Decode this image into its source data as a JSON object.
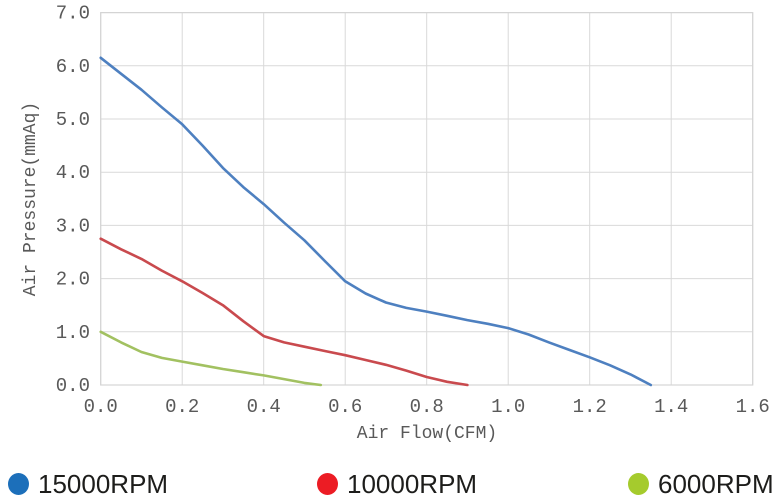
{
  "chart_data": {
    "type": "line",
    "xlabel": "Air Flow(CFM)",
    "ylabel": "Air Pressure(mmAq)",
    "xlim": [
      0,
      1.6
    ],
    "ylim": [
      0,
      7.0
    ],
    "xticks": [
      "0.0",
      "0.2",
      "0.4",
      "0.6",
      "0.8",
      "1.0",
      "1.2",
      "1.4",
      "1.6"
    ],
    "yticks": [
      "0.0",
      "1.0",
      "2.0",
      "3.0",
      "4.0",
      "5.0",
      "6.0",
      "7.0"
    ],
    "grid": true,
    "legend_position": "bottom",
    "series": [
      {
        "name": "15000RPM",
        "line_color": "#4e80c0",
        "legend_color": "#1c6fba",
        "x": [
          0,
          0.05,
          0.1,
          0.15,
          0.2,
          0.25,
          0.3,
          0.35,
          0.4,
          0.45,
          0.5,
          0.55,
          0.6,
          0.65,
          0.7,
          0.75,
          0.8,
          0.85,
          0.9,
          0.95,
          1.0,
          1.05,
          1.1,
          1.15,
          1.2,
          1.25,
          1.3,
          1.35
        ],
        "y": [
          6.15,
          5.85,
          5.55,
          5.22,
          4.9,
          4.5,
          4.08,
          3.72,
          3.4,
          3.05,
          2.72,
          2.33,
          1.95,
          1.72,
          1.55,
          1.45,
          1.38,
          1.3,
          1.22,
          1.15,
          1.07,
          0.95,
          0.8,
          0.66,
          0.52,
          0.37,
          0.2,
          0.0
        ]
      },
      {
        "name": "10000RPM",
        "line_color": "#c94a4e",
        "legend_color": "#ec1c24",
        "x": [
          0,
          0.05,
          0.1,
          0.15,
          0.2,
          0.25,
          0.3,
          0.35,
          0.4,
          0.45,
          0.5,
          0.55,
          0.6,
          0.65,
          0.7,
          0.75,
          0.8,
          0.85,
          0.9
        ],
        "y": [
          2.75,
          2.55,
          2.37,
          2.15,
          1.95,
          1.73,
          1.5,
          1.2,
          0.92,
          0.8,
          0.72,
          0.64,
          0.56,
          0.47,
          0.38,
          0.27,
          0.15,
          0.06,
          0.0
        ]
      },
      {
        "name": "6000RPM",
        "line_color": "#a2c161",
        "legend_color": "#a5cb2d",
        "x": [
          0,
          0.05,
          0.1,
          0.15,
          0.2,
          0.25,
          0.3,
          0.35,
          0.4,
          0.45,
          0.5,
          0.54
        ],
        "y": [
          1.0,
          0.8,
          0.62,
          0.51,
          0.44,
          0.37,
          0.3,
          0.24,
          0.18,
          0.11,
          0.04,
          0.0
        ]
      }
    ]
  },
  "colors": {
    "grid": "#d9d9d9",
    "plot_border": "#d4d4d4",
    "axis_text": "#595959",
    "legend_text": "#1d1d1b",
    "background": "#ffffff"
  }
}
